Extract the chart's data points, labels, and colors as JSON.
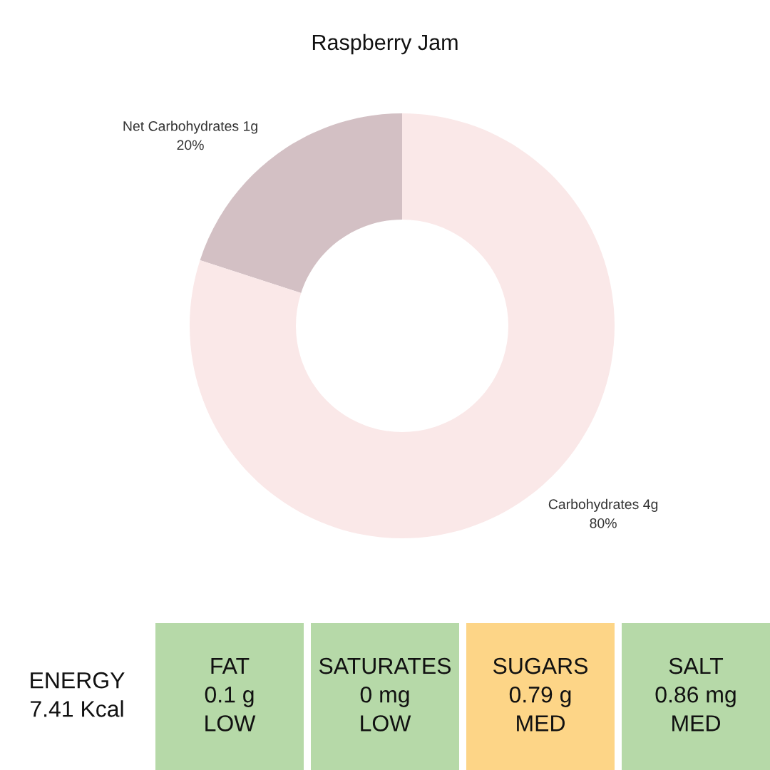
{
  "chart_data": [
    {
      "type": "donut",
      "title": "Raspberry Jam",
      "categories": [
        "Net Carbohydrates 1g",
        "Carbohydrates 4g"
      ],
      "values": [
        20,
        80
      ],
      "colors": [
        "#d3c0c4",
        "#fae8e8"
      ],
      "value_labels": [
        "20%",
        "80%"
      ]
    },
    {
      "type": "other",
      "categories": [
        [
          "ENERGY",
          "7.41 Kcal"
        ],
        [
          "FAT",
          "0.1 g",
          "LOW"
        ],
        [
          "SATURATES",
          "0 mg",
          "LOW"
        ],
        [
          "SUGARS",
          "0.79 g",
          "MED"
        ],
        [
          "SALT",
          "0.86 mg",
          "MED"
        ]
      ],
      "colors": [
        null,
        "#b6d9a8",
        "#b6d9a8",
        "#fdd587",
        "#b6d9a8"
      ]
    }
  ]
}
